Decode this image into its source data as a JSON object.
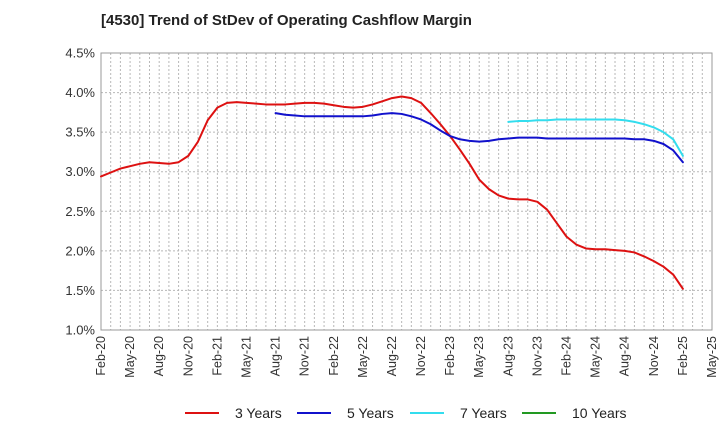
{
  "chart_data": {
    "type": "line",
    "title": "[4530]  Trend of StDev of Operating Cashflow Margin",
    "xlabel": "",
    "ylabel": "",
    "ylim": [
      1.0,
      4.5
    ],
    "yticks": [
      "1.0%",
      "1.5%",
      "2.0%",
      "2.5%",
      "3.0%",
      "3.5%",
      "4.0%",
      "4.5%"
    ],
    "ytick_values": [
      1.0,
      1.5,
      2.0,
      2.5,
      3.0,
      3.5,
      4.0,
      4.5
    ],
    "xticks": [
      "Feb-20",
      "May-20",
      "Aug-20",
      "Nov-20",
      "Feb-21",
      "May-21",
      "Aug-21",
      "Nov-21",
      "Feb-22",
      "May-22",
      "Aug-22",
      "Nov-22",
      "Feb-23",
      "May-23",
      "Aug-23",
      "Nov-23",
      "Feb-24",
      "May-24",
      "Aug-24",
      "Nov-24",
      "Feb-25",
      "May-25"
    ],
    "xtick_months": [
      0,
      3,
      6,
      9,
      12,
      15,
      18,
      21,
      24,
      27,
      30,
      33,
      36,
      39,
      42,
      45,
      48,
      51,
      54,
      57,
      60,
      63
    ],
    "grid": true,
    "legend_position": "bottom",
    "series": [
      {
        "name": "3 Years",
        "color": "#dd1111",
        "x_months": [
          0,
          1,
          2,
          3,
          4,
          5,
          6,
          7,
          8,
          9,
          10,
          11,
          12,
          13,
          14,
          15,
          16,
          17,
          18,
          19,
          20,
          21,
          22,
          23,
          24,
          25,
          26,
          27,
          28,
          29,
          30,
          31,
          32,
          33,
          34,
          35,
          36,
          37,
          38,
          39,
          40,
          41,
          42,
          43,
          44,
          45,
          46,
          47,
          48,
          49,
          50,
          51,
          52,
          53,
          54,
          55,
          56,
          57,
          58,
          59,
          60
        ],
        "values": [
          2.94,
          2.99,
          3.04,
          3.07,
          3.1,
          3.12,
          3.11,
          3.1,
          3.12,
          3.2,
          3.38,
          3.65,
          3.81,
          3.87,
          3.88,
          3.87,
          3.86,
          3.85,
          3.85,
          3.85,
          3.86,
          3.87,
          3.87,
          3.86,
          3.84,
          3.82,
          3.81,
          3.82,
          3.85,
          3.89,
          3.93,
          3.95,
          3.93,
          3.87,
          3.74,
          3.6,
          3.45,
          3.28,
          3.1,
          2.9,
          2.78,
          2.7,
          2.66,
          2.65,
          2.65,
          2.62,
          2.52,
          2.35,
          2.18,
          2.08,
          2.03,
          2.02,
          2.02,
          2.01,
          2.0,
          1.98,
          1.93,
          1.87,
          1.8,
          1.7,
          1.52
        ]
      },
      {
        "name": "5 Years",
        "color": "#1111cc",
        "x_months": [
          18,
          19,
          20,
          21,
          22,
          23,
          24,
          25,
          26,
          27,
          28,
          29,
          30,
          31,
          32,
          33,
          34,
          35,
          36,
          37,
          38,
          39,
          40,
          41,
          42,
          43,
          44,
          45,
          46,
          47,
          48,
          49,
          50,
          51,
          52,
          53,
          54,
          55,
          56,
          57,
          58,
          59,
          60
        ],
        "values": [
          3.74,
          3.72,
          3.71,
          3.7,
          3.7,
          3.7,
          3.7,
          3.7,
          3.7,
          3.7,
          3.71,
          3.73,
          3.74,
          3.73,
          3.7,
          3.66,
          3.6,
          3.52,
          3.45,
          3.41,
          3.39,
          3.38,
          3.39,
          3.41,
          3.42,
          3.43,
          3.43,
          3.43,
          3.42,
          3.42,
          3.42,
          3.42,
          3.42,
          3.42,
          3.42,
          3.42,
          3.42,
          3.41,
          3.41,
          3.39,
          3.35,
          3.27,
          3.12
        ]
      },
      {
        "name": "7 Years",
        "color": "#33ddee",
        "x_months": [
          42,
          43,
          44,
          45,
          46,
          47,
          48,
          49,
          50,
          51,
          52,
          53,
          54,
          55,
          56,
          57,
          58,
          59,
          60
        ],
        "values": [
          3.63,
          3.64,
          3.64,
          3.65,
          3.65,
          3.66,
          3.66,
          3.66,
          3.66,
          3.66,
          3.66,
          3.66,
          3.65,
          3.63,
          3.6,
          3.56,
          3.5,
          3.41,
          3.2
        ]
      },
      {
        "name": "10 Years",
        "color": "#229922",
        "x_months": [],
        "values": []
      }
    ]
  }
}
